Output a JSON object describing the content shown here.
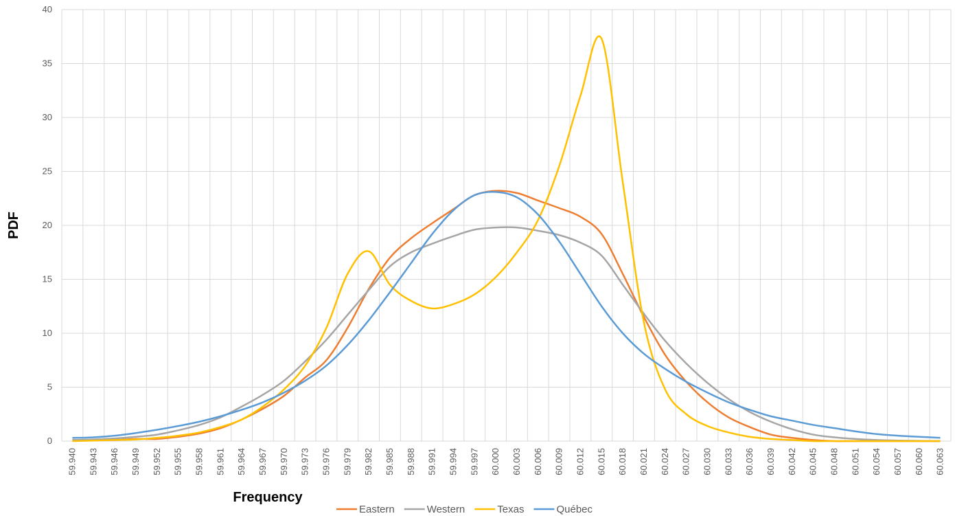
{
  "chart_data": {
    "type": "line",
    "x_label": "Frequency",
    "y_label": "PDF",
    "categories": [
      "59.940",
      "59.943",
      "59.946",
      "59.949",
      "59.952",
      "59.955",
      "59.958",
      "59.961",
      "59.964",
      "59.967",
      "59.970",
      "59.973",
      "59.976",
      "59.979",
      "59.982",
      "59.985",
      "59.988",
      "59.991",
      "59.994",
      "59.997",
      "60.000",
      "60.003",
      "60.006",
      "60.009",
      "60.012",
      "60.015",
      "60.018",
      "60.021",
      "60.024",
      "60.027",
      "60.030",
      "60.033",
      "60.036",
      "60.039",
      "60.042",
      "60.045",
      "60.048",
      "60.051",
      "60.054",
      "60.057",
      "60.060",
      "60.063"
    ],
    "series": [
      {
        "name": "Eastern",
        "color": "#ed7d31",
        "values": [
          0.1,
          0.1,
          0.1,
          0.2,
          0.2,
          0.4,
          0.7,
          1.2,
          2.0,
          3.0,
          4.2,
          5.9,
          7.5,
          10.5,
          14.1,
          17.0,
          18.8,
          20.2,
          21.5,
          22.8,
          23.2,
          23.0,
          22.3,
          21.6,
          20.8,
          19.2,
          15.5,
          11.5,
          8.0,
          5.5,
          3.6,
          2.2,
          1.3,
          0.6,
          0.3,
          0.1,
          0,
          0,
          0,
          0,
          0,
          0
        ]
      },
      {
        "name": "Western",
        "color": "#a5a5a5",
        "values": [
          0.1,
          0.15,
          0.25,
          0.4,
          0.6,
          1.0,
          1.5,
          2.2,
          3.2,
          4.3,
          5.6,
          7.4,
          9.4,
          11.7,
          14.0,
          16.2,
          17.5,
          18.3,
          19.0,
          19.6,
          19.8,
          19.8,
          19.5,
          19.1,
          18.4,
          17.2,
          14.5,
          11.8,
          9.3,
          7.2,
          5.4,
          3.9,
          2.7,
          1.8,
          1.1,
          0.6,
          0.35,
          0.2,
          0.1,
          0.05,
          0.02,
          0
        ]
      },
      {
        "name": "Texas",
        "color": "#ffc000",
        "values": [
          0,
          0.05,
          0.1,
          0.15,
          0.3,
          0.5,
          0.8,
          1.3,
          2.0,
          3.2,
          4.8,
          7.0,
          10.5,
          15.5,
          17.6,
          14.5,
          13.0,
          12.3,
          12.7,
          13.6,
          15.2,
          17.5,
          20.5,
          25.5,
          32,
          37.3,
          24,
          11,
          4.8,
          2.5,
          1.4,
          0.8,
          0.4,
          0.2,
          0.1,
          0,
          0,
          0,
          0,
          0,
          0,
          0
        ]
      },
      {
        "name": "Québec",
        "color": "#5b9bd5",
        "values": [
          0.3,
          0.35,
          0.5,
          0.75,
          1.05,
          1.4,
          1.8,
          2.3,
          2.9,
          3.6,
          4.5,
          5.6,
          7.0,
          8.9,
          11.2,
          13.8,
          16.5,
          19.2,
          21.4,
          22.8,
          23.1,
          22.6,
          21.0,
          18.5,
          15.5,
          12.5,
          10.0,
          8.1,
          6.7,
          5.5,
          4.5,
          3.6,
          2.9,
          2.3,
          1.9,
          1.5,
          1.2,
          0.9,
          0.65,
          0.5,
          0.4,
          0.3
        ]
      }
    ],
    "ylim": [
      0,
      40
    ],
    "yticks": [
      0,
      5,
      10,
      15,
      20,
      25,
      30,
      35,
      40
    ],
    "grid": true
  }
}
